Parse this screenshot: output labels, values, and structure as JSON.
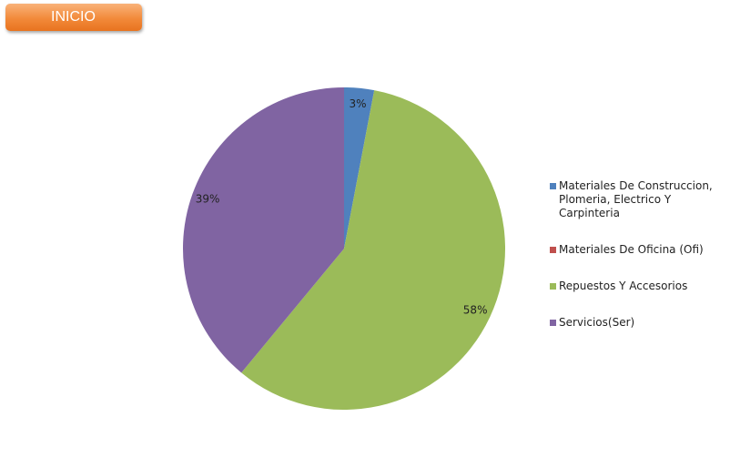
{
  "button": {
    "label": "INICIO"
  },
  "chart_data": {
    "type": "pie",
    "categories": [
      "Materiales De Construccion, Plomeria, Electrico Y Carpinteria",
      "Materiales De Oficina (Ofi)",
      "Repuestos Y Accesorios",
      "Servicios(Ser)"
    ],
    "values": [
      3,
      0,
      58,
      39
    ],
    "value_labels": [
      "3%",
      null,
      "58%",
      "39%"
    ],
    "colors": [
      "#4f81bd",
      "#c0504d",
      "#9bbb59",
      "#8064a2"
    ],
    "legend": "right"
  }
}
